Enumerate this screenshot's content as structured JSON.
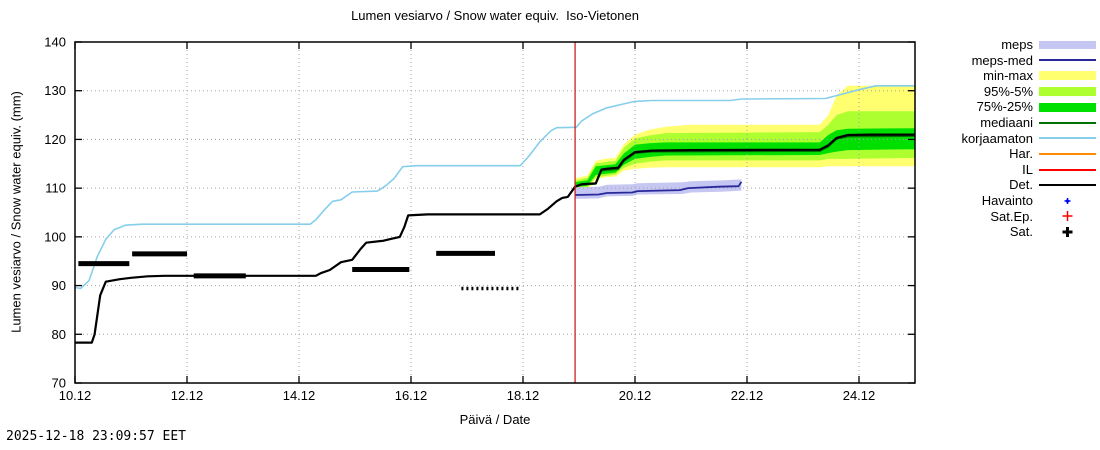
{
  "title": "Lumen vesiarvo / Snow water equiv.  Iso-Vietonen",
  "timestamp": "2025-12-18 23:09:57 EET",
  "chart_data": {
    "type": "line",
    "title": "Lumen vesiarvo / Snow water equiv.  Iso-Vietonen",
    "xlabel": "Päivä / Date",
    "ylabel": "Lumen vesiarvo / Snow water equiv. (mm)",
    "x_range": [
      0,
      15
    ],
    "y_range": [
      70,
      140
    ],
    "x_ticks": [
      {
        "pos": 0,
        "label": "10.12"
      },
      {
        "pos": 2,
        "label": "12.12"
      },
      {
        "pos": 4,
        "label": "14.12"
      },
      {
        "pos": 6,
        "label": "16.12"
      },
      {
        "pos": 8,
        "label": "18.12"
      },
      {
        "pos": 10,
        "label": "20.12"
      },
      {
        "pos": 12,
        "label": "22.12"
      },
      {
        "pos": 14,
        "label": "24.12"
      }
    ],
    "y_ticks": [
      70,
      80,
      90,
      100,
      110,
      120,
      130,
      140
    ],
    "forecast_start_x": 8.93,
    "colors": {
      "meps": "#c6c6f2",
      "meps_med": "#28289b",
      "minmax": "#ffff70",
      "p95_5": "#adff2f",
      "p75_25": "#00e000",
      "mediaani": "#007000",
      "korjaamaton": "#87ceeb",
      "har": "#ff8c00",
      "il": "#ff0000",
      "det": "#000000",
      "havainto": "#0000ff",
      "sat_ep": "#ff0000",
      "sat": "#000000",
      "forecast_line": "#cc2222",
      "grid": "#a0a0a0"
    },
    "bands": [
      {
        "name": "min-max",
        "color": "minmax",
        "points": [
          [
            8.93,
            109.2,
            112.0
          ],
          [
            9.15,
            109.6,
            112.6
          ],
          [
            9.3,
            111.8,
            115.6
          ],
          [
            9.45,
            112.2,
            116.0
          ],
          [
            9.65,
            112.4,
            116.2
          ],
          [
            9.8,
            113.6,
            119.0
          ],
          [
            10.0,
            114.0,
            121.0
          ],
          [
            10.25,
            114.2,
            122.0
          ],
          [
            10.55,
            114.3,
            122.6
          ],
          [
            11.0,
            114.3,
            123.0
          ],
          [
            13.3,
            114.3,
            123.0
          ],
          [
            13.45,
            114.5,
            125.0
          ],
          [
            13.6,
            114.5,
            129.0
          ],
          [
            13.8,
            114.5,
            131.0
          ],
          [
            15,
            114.5,
            131.0
          ]
        ]
      },
      {
        "name": "95%-5%",
        "color": "p95_5",
        "points": [
          [
            8.93,
            109.8,
            111.6
          ],
          [
            9.15,
            110.1,
            112.1
          ],
          [
            9.3,
            112.2,
            115.1
          ],
          [
            9.65,
            112.8,
            115.6
          ],
          [
            9.8,
            114.2,
            118.3
          ],
          [
            10.0,
            115.0,
            120.2
          ],
          [
            10.25,
            115.4,
            120.8
          ],
          [
            10.55,
            115.7,
            121.3
          ],
          [
            13.3,
            115.7,
            121.5
          ],
          [
            13.45,
            116.0,
            123.0
          ],
          [
            13.6,
            116.0,
            125.0
          ],
          [
            13.8,
            116.0,
            125.8
          ],
          [
            15,
            116.2,
            125.8
          ]
        ]
      },
      {
        "name": "75%-25%",
        "color": "p75_25",
        "points": [
          [
            8.93,
            110.2,
            111.2
          ],
          [
            9.15,
            110.5,
            111.6
          ],
          [
            9.3,
            112.7,
            114.5
          ],
          [
            9.65,
            113.2,
            114.9
          ],
          [
            9.8,
            114.8,
            117.1
          ],
          [
            10.0,
            116.0,
            118.9
          ],
          [
            10.25,
            116.4,
            119.2
          ],
          [
            10.55,
            116.7,
            119.4
          ],
          [
            13.3,
            116.8,
            119.4
          ],
          [
            13.45,
            117.2,
            120.9
          ],
          [
            13.6,
            117.5,
            121.9
          ],
          [
            13.8,
            117.8,
            122.2
          ],
          [
            15,
            118.0,
            122.3
          ]
        ]
      },
      {
        "name": "meps",
        "color": "meps",
        "points": [
          [
            8.93,
            107.8,
            110.2
          ],
          [
            9.35,
            107.9,
            110.3
          ],
          [
            9.5,
            108.3,
            110.7
          ],
          [
            9.95,
            108.4,
            110.8
          ],
          [
            10.05,
            108.7,
            111.0
          ],
          [
            10.85,
            108.8,
            111.2
          ],
          [
            11.0,
            109.1,
            111.4
          ],
          [
            11.6,
            109.3,
            111.6
          ],
          [
            11.9,
            109.5,
            111.8
          ]
        ]
      }
    ],
    "lines": [
      {
        "name": "korjaamaton",
        "color": "korjaamaton",
        "width": 1.6,
        "points": [
          [
            0,
            89.6
          ],
          [
            0.1,
            89.4
          ],
          [
            0.25,
            91.0
          ],
          [
            0.4,
            96.0
          ],
          [
            0.55,
            99.5
          ],
          [
            0.7,
            101.5
          ],
          [
            0.9,
            102.4
          ],
          [
            1.2,
            102.6
          ],
          [
            4.2,
            102.6
          ],
          [
            4.3,
            103.5
          ],
          [
            4.45,
            105.5
          ],
          [
            4.6,
            107.3
          ],
          [
            4.75,
            107.6
          ],
          [
            4.95,
            109.2
          ],
          [
            5.4,
            109.4
          ],
          [
            5.55,
            110.5
          ],
          [
            5.7,
            112.0
          ],
          [
            5.85,
            114.4
          ],
          [
            6.1,
            114.6
          ],
          [
            7.95,
            114.6
          ],
          [
            8.1,
            116.5
          ],
          [
            8.3,
            119.5
          ],
          [
            8.5,
            121.8
          ],
          [
            8.6,
            122.4
          ],
          [
            8.95,
            122.5
          ],
          [
            9.05,
            123.8
          ],
          [
            9.25,
            125.3
          ],
          [
            9.5,
            126.5
          ],
          [
            9.8,
            127.3
          ],
          [
            10.0,
            127.8
          ],
          [
            10.3,
            128.0
          ],
          [
            11.7,
            128.0
          ],
          [
            11.9,
            128.3
          ],
          [
            13.4,
            128.4
          ],
          [
            13.7,
            129.3
          ],
          [
            14.0,
            130.2
          ],
          [
            14.3,
            131.0
          ],
          [
            15,
            131.0
          ]
        ]
      },
      {
        "name": "meps-med",
        "color": "meps_med",
        "width": 1.8,
        "points": [
          [
            8.93,
            108.6
          ],
          [
            9.35,
            108.7
          ],
          [
            9.5,
            109.0
          ],
          [
            9.95,
            109.1
          ],
          [
            10.05,
            109.4
          ],
          [
            10.8,
            109.6
          ],
          [
            10.95,
            110.0
          ],
          [
            11.5,
            110.3
          ],
          [
            11.85,
            110.4
          ],
          [
            11.9,
            111.3
          ]
        ]
      },
      {
        "name": "mediaani",
        "color": "mediaani",
        "width": 1.8,
        "points": [
          [
            8.93,
            110.3
          ],
          [
            9.05,
            110.7
          ],
          [
            9.3,
            110.9
          ],
          [
            9.4,
            113.6
          ],
          [
            9.7,
            113.9
          ],
          [
            9.8,
            115.5
          ],
          [
            10.0,
            117.2
          ],
          [
            10.3,
            117.5
          ],
          [
            13.3,
            117.6
          ],
          [
            13.45,
            118.5
          ],
          [
            13.6,
            120.1
          ],
          [
            13.8,
            120.6
          ],
          [
            15,
            120.7
          ]
        ]
      },
      {
        "name": "Det.",
        "color": "det",
        "width": 2.2,
        "points": [
          [
            0,
            78.3
          ],
          [
            0.3,
            78.3
          ],
          [
            0.35,
            80.0
          ],
          [
            0.45,
            88.0
          ],
          [
            0.55,
            90.8
          ],
          [
            0.8,
            91.3
          ],
          [
            1.0,
            91.6
          ],
          [
            1.3,
            91.9
          ],
          [
            1.6,
            92.0
          ],
          [
            4.3,
            92.0
          ],
          [
            4.4,
            92.6
          ],
          [
            4.55,
            93.2
          ],
          [
            4.75,
            94.8
          ],
          [
            4.95,
            95.3
          ],
          [
            5.1,
            97.5
          ],
          [
            5.2,
            98.8
          ],
          [
            5.5,
            99.2
          ],
          [
            5.65,
            99.6
          ],
          [
            5.8,
            100.0
          ],
          [
            5.88,
            102.0
          ],
          [
            5.95,
            104.4
          ],
          [
            6.3,
            104.6
          ],
          [
            8.3,
            104.6
          ],
          [
            8.45,
            105.8
          ],
          [
            8.6,
            107.3
          ],
          [
            8.7,
            108.0
          ],
          [
            8.8,
            108.2
          ],
          [
            8.93,
            110.3
          ],
          [
            9.05,
            110.8
          ],
          [
            9.3,
            111.0
          ],
          [
            9.4,
            113.8
          ],
          [
            9.5,
            114.0
          ],
          [
            9.7,
            114.2
          ],
          [
            9.8,
            115.8
          ],
          [
            10.0,
            117.4
          ],
          [
            10.3,
            117.7
          ],
          [
            11.0,
            117.8
          ],
          [
            13.3,
            117.9
          ],
          [
            13.45,
            118.8
          ],
          [
            13.6,
            120.3
          ],
          [
            13.8,
            120.9
          ],
          [
            14.2,
            121.0
          ],
          [
            15,
            121.0
          ]
        ]
      }
    ],
    "sat_bars": [
      {
        "x0": 0.06,
        "x1": 0.97,
        "y": 94.5,
        "style": "solid"
      },
      {
        "x0": 1.02,
        "x1": 2.0,
        "y": 96.5,
        "style": "solid"
      },
      {
        "x0": 2.12,
        "x1": 3.05,
        "y": 92.0,
        "style": "solid"
      },
      {
        "x0": 4.95,
        "x1": 5.97,
        "y": 93.3,
        "style": "solid"
      },
      {
        "x0": 6.45,
        "x1": 7.5,
        "y": 96.6,
        "style": "solid"
      },
      {
        "x0": 6.9,
        "x1": 7.97,
        "y": 89.4,
        "style": "dotted"
      }
    ],
    "legend": [
      {
        "label": "meps",
        "kind": "band",
        "color": "meps",
        "h": 8
      },
      {
        "label": "meps-med",
        "kind": "line",
        "color": "meps_med",
        "h": 2
      },
      {
        "label": "min-max",
        "kind": "band",
        "color": "minmax",
        "h": 9
      },
      {
        "label": "95%-5%",
        "kind": "band",
        "color": "p95_5",
        "h": 9
      },
      {
        "label": "75%-25%",
        "kind": "band",
        "color": "p75_25",
        "h": 9
      },
      {
        "label": "mediaani",
        "kind": "line",
        "color": "mediaani",
        "h": 2
      },
      {
        "label": "korjaamaton",
        "kind": "line",
        "color": "korjaamaton",
        "h": 2
      },
      {
        "label": "Har.",
        "kind": "line",
        "color": "har",
        "h": 2
      },
      {
        "label": "IL",
        "kind": "line",
        "color": "il",
        "h": 2
      },
      {
        "label": "Det.",
        "kind": "line",
        "color": "det",
        "h": 2
      },
      {
        "label": "Havainto",
        "kind": "marker-small-plus",
        "color": "havainto"
      },
      {
        "label": "Sat.Ep.",
        "kind": "marker-plus",
        "color": "sat_ep"
      },
      {
        "label": "Sat.",
        "kind": "marker-bold-plus",
        "color": "sat"
      }
    ]
  }
}
